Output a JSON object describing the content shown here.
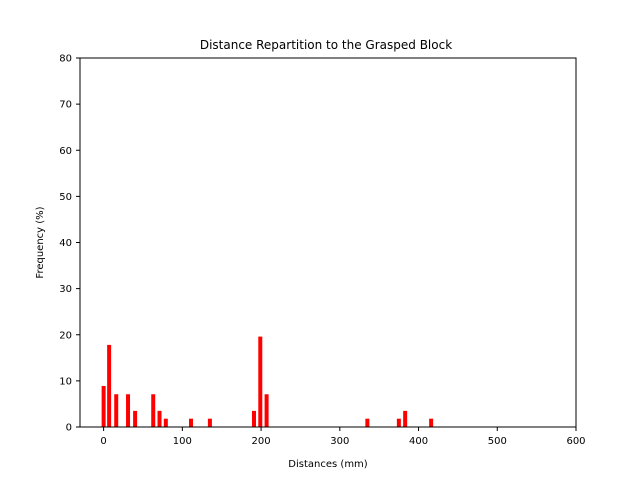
{
  "chart_data": {
    "type": "bar",
    "title": "Distance Repartition to the Grasped Block",
    "xlabel": "Distances (mm)",
    "ylabel": "Frequency (%)",
    "xlim": [
      -30,
      600
    ],
    "ylim": [
      0,
      80
    ],
    "xticks": [
      0,
      100,
      200,
      300,
      400,
      500,
      600
    ],
    "yticks": [
      0,
      10,
      20,
      30,
      40,
      50,
      60,
      70,
      80
    ],
    "grid": false,
    "bar_color": "#ff0000",
    "bar_width": 4,
    "x": [
      0,
      7,
      16,
      31,
      40,
      63,
      71,
      79,
      111,
      135,
      191,
      199,
      207,
      335,
      375,
      383,
      416
    ],
    "values": [
      8.9,
      17.8,
      7.1,
      7.1,
      3.5,
      7.1,
      3.5,
      1.8,
      1.8,
      1.8,
      3.5,
      19.6,
      7.1,
      1.8,
      1.8,
      3.5,
      1.8
    ]
  }
}
